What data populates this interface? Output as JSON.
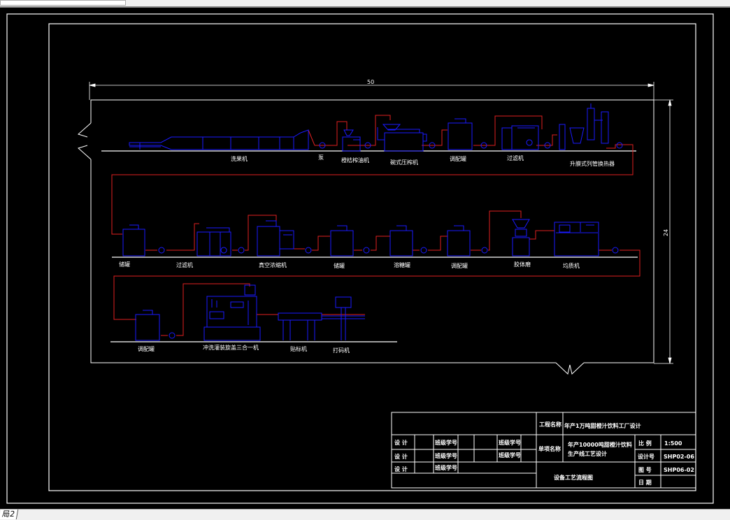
{
  "layout_tab": "局2",
  "dimensions": {
    "width": "50",
    "height": "24"
  },
  "colors": {
    "equipment": "#1a1aff",
    "pipe": "#e02020",
    "frame": "#ffffff",
    "background": "#000000"
  },
  "row1": [
    "洗果机",
    "泵",
    "橙桔榨油机",
    "碗式压榨机",
    "调配罐",
    "过滤机",
    "升膜式列管换热器"
  ],
  "row2": [
    "储罐",
    "过滤机",
    "真空浓缩机",
    "储罐",
    "溶糖罐",
    "调配罐",
    "胶体磨",
    "均质机"
  ],
  "row3": [
    "调配罐",
    "冲洗灌装旋盖三合一机",
    "贴标机",
    "打码机"
  ],
  "title_block": {
    "project_label": "工程名称",
    "project_name": "年产1万吨甜橙汁饮料工厂设计",
    "design": "设 计",
    "class_id": "班级学号",
    "item_label": "单项名称",
    "item_name_1": "年产10000吨甜橙汁饮料",
    "item_name_2": "生产线工艺设计",
    "scale_label": "比 例",
    "scale": "1:500",
    "design_no_label": "设计号",
    "design_no": "SHP02-06",
    "drawing_no_label": "图 号",
    "drawing_no": "SHP06-02",
    "date_label": "日 期",
    "drawing_title": "设备工艺流程图"
  }
}
